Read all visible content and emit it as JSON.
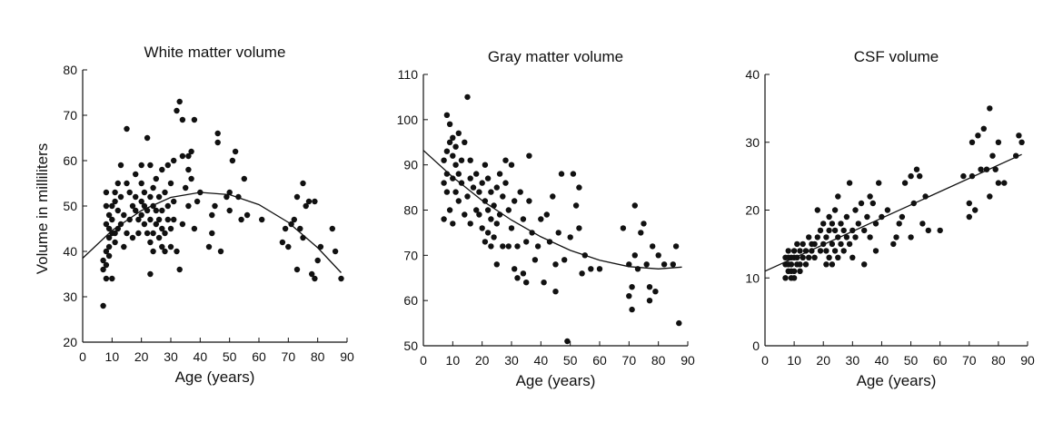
{
  "figure": {
    "ylabel": "Volume in milliliters",
    "xlabel": "Age (years)"
  },
  "chart_data": [
    {
      "type": "scatter",
      "title": "White matter volume",
      "xlabel": "Age (years)",
      "ylabel": "Volume in milliliters",
      "xlim": [
        0,
        90
      ],
      "ylim": [
        20,
        80
      ],
      "xticks": [
        0,
        10,
        20,
        30,
        40,
        50,
        60,
        70,
        80,
        90
      ],
      "yticks": [
        20,
        30,
        40,
        50,
        60,
        70,
        80
      ],
      "grid": false,
      "fit": {
        "kind": "quadratic",
        "x": [
          0,
          10,
          20,
          30,
          40,
          50,
          60,
          70,
          80,
          88
        ],
        "y": [
          38.5,
          44.6,
          49.0,
          51.9,
          53.0,
          52.5,
          50.3,
          46.4,
          40.8,
          35.3
        ]
      },
      "points": [
        [
          7,
          28
        ],
        [
          7,
          36
        ],
        [
          7,
          38
        ],
        [
          8,
          34
        ],
        [
          8,
          37
        ],
        [
          8,
          40
        ],
        [
          8,
          46
        ],
        [
          8,
          50
        ],
        [
          8,
          53
        ],
        [
          9,
          39
        ],
        [
          9,
          41
        ],
        [
          9,
          43
        ],
        [
          9,
          45
        ],
        [
          9,
          48
        ],
        [
          10,
          34
        ],
        [
          10,
          44
        ],
        [
          10,
          47
        ],
        [
          10,
          50
        ],
        [
          11,
          42
        ],
        [
          11,
          44
        ],
        [
          11,
          51
        ],
        [
          11,
          53
        ],
        [
          12,
          45
        ],
        [
          12,
          49
        ],
        [
          12,
          55
        ],
        [
          13,
          46
        ],
        [
          13,
          52
        ],
        [
          13,
          59
        ],
        [
          14,
          41
        ],
        [
          14,
          48
        ],
        [
          15,
          67
        ],
        [
          15,
          44
        ],
        [
          15,
          55
        ],
        [
          16,
          47
        ],
        [
          16,
          53
        ],
        [
          17,
          43
        ],
        [
          17,
          50
        ],
        [
          18,
          49
        ],
        [
          18,
          52
        ],
        [
          18,
          57
        ],
        [
          19,
          44
        ],
        [
          19,
          47
        ],
        [
          20,
          48
        ],
        [
          20,
          51
        ],
        [
          20,
          59
        ],
        [
          20,
          55
        ],
        [
          21,
          50
        ],
        [
          21,
          46
        ],
        [
          21,
          53
        ],
        [
          22,
          65
        ],
        [
          22,
          44
        ],
        [
          22,
          49
        ],
        [
          23,
          35
        ],
        [
          23,
          42
        ],
        [
          23,
          47
        ],
        [
          23,
          52
        ],
        [
          23,
          59
        ],
        [
          24,
          40
        ],
        [
          24,
          44
        ],
        [
          24,
          50
        ],
        [
          24,
          54
        ],
        [
          25,
          46
        ],
        [
          25,
          49
        ],
        [
          25,
          56
        ],
        [
          26,
          43
        ],
        [
          26,
          47
        ],
        [
          26,
          52
        ],
        [
          27,
          41
        ],
        [
          27,
          45
        ],
        [
          27,
          49
        ],
        [
          27,
          58
        ],
        [
          28,
          40
        ],
        [
          28,
          44
        ],
        [
          28,
          53
        ],
        [
          29,
          47
        ],
        [
          29,
          50
        ],
        [
          29,
          59
        ],
        [
          30,
          41
        ],
        [
          30,
          45
        ],
        [
          30,
          55
        ],
        [
          31,
          47
        ],
        [
          31,
          51
        ],
        [
          31,
          60
        ],
        [
          32,
          71
        ],
        [
          32,
          40
        ],
        [
          33,
          36
        ],
        [
          33,
          73
        ],
        [
          34,
          46
        ],
        [
          34,
          61
        ],
        [
          34,
          69
        ],
        [
          35,
          54
        ],
        [
          36,
          50
        ],
        [
          36,
          58
        ],
        [
          36,
          61
        ],
        [
          37,
          56
        ],
        [
          37,
          62
        ],
        [
          38,
          45
        ],
        [
          38,
          69
        ],
        [
          39,
          51
        ],
        [
          40,
          53
        ],
        [
          43,
          41
        ],
        [
          44,
          44
        ],
        [
          44,
          48
        ],
        [
          45,
          50
        ],
        [
          46,
          64
        ],
        [
          46,
          66
        ],
        [
          47,
          40
        ],
        [
          49,
          52
        ],
        [
          50,
          49
        ],
        [
          50,
          53
        ],
        [
          51,
          60
        ],
        [
          52,
          62
        ],
        [
          53,
          52
        ],
        [
          54,
          47
        ],
        [
          55,
          56
        ],
        [
          56,
          48
        ],
        [
          61,
          47
        ],
        [
          68,
          42
        ],
        [
          69,
          45
        ],
        [
          70,
          41
        ],
        [
          71,
          46
        ],
        [
          72,
          47
        ],
        [
          73,
          52
        ],
        [
          73,
          36
        ],
        [
          74,
          45
        ],
        [
          75,
          43
        ],
        [
          75,
          55
        ],
        [
          76,
          50
        ],
        [
          77,
          51
        ],
        [
          78,
          35
        ],
        [
          79,
          34
        ],
        [
          79,
          51
        ],
        [
          80,
          38
        ],
        [
          81,
          41
        ],
        [
          85,
          45
        ],
        [
          86,
          40
        ],
        [
          88,
          34
        ]
      ]
    },
    {
      "type": "scatter",
      "title": "Gray matter volume",
      "xlabel": "Age (years)",
      "ylabel": "",
      "xlim": [
        0,
        90
      ],
      "ylim": [
        50,
        110
      ],
      "xticks": [
        0,
        10,
        20,
        30,
        40,
        50,
        60,
        70,
        80,
        90
      ],
      "yticks": [
        50,
        60,
        70,
        80,
        90,
        100,
        110
      ],
      "grid": false,
      "fit": {
        "kind": "quadratic",
        "x": [
          0,
          10,
          20,
          30,
          40,
          50,
          60,
          70,
          80,
          88
        ],
        "y": [
          93.2,
          87.3,
          82.1,
          77.8,
          74.1,
          71.1,
          68.9,
          67.5,
          67.0,
          67.4
        ]
      },
      "points": [
        [
          7,
          78
        ],
        [
          7,
          86
        ],
        [
          7,
          91
        ],
        [
          8,
          101
        ],
        [
          8,
          84
        ],
        [
          8,
          88
        ],
        [
          8,
          93
        ],
        [
          9,
          80
        ],
        [
          9,
          95
        ],
        [
          9,
          99
        ],
        [
          10,
          77
        ],
        [
          10,
          87
        ],
        [
          10,
          92
        ],
        [
          10,
          96
        ],
        [
          11,
          84
        ],
        [
          11,
          90
        ],
        [
          11,
          94
        ],
        [
          12,
          82
        ],
        [
          12,
          88
        ],
        [
          12,
          97
        ],
        [
          13,
          86
        ],
        [
          13,
          91
        ],
        [
          14,
          79
        ],
        [
          14,
          95
        ],
        [
          15,
          105
        ],
        [
          15,
          83
        ],
        [
          16,
          77
        ],
        [
          16,
          87
        ],
        [
          16,
          91
        ],
        [
          17,
          85
        ],
        [
          18,
          80
        ],
        [
          18,
          88
        ],
        [
          19,
          79
        ],
        [
          19,
          84
        ],
        [
          20,
          76
        ],
        [
          20,
          86
        ],
        [
          21,
          73
        ],
        [
          21,
          82
        ],
        [
          21,
          90
        ],
        [
          22,
          75
        ],
        [
          22,
          80
        ],
        [
          22,
          87
        ],
        [
          23,
          72
        ],
        [
          23,
          78
        ],
        [
          23,
          84
        ],
        [
          24,
          74
        ],
        [
          24,
          81
        ],
        [
          25,
          68
        ],
        [
          25,
          77
        ],
        [
          25,
          85
        ],
        [
          26,
          79
        ],
        [
          26,
          88
        ],
        [
          27,
          72
        ],
        [
          27,
          83
        ],
        [
          28,
          91
        ],
        [
          28,
          86
        ],
        [
          29,
          72
        ],
        [
          29,
          80
        ],
        [
          30,
          90
        ],
        [
          30,
          76
        ],
        [
          31,
          67
        ],
        [
          31,
          82
        ],
        [
          32,
          65
        ],
        [
          32,
          72
        ],
        [
          33,
          84
        ],
        [
          34,
          78
        ],
        [
          34,
          66
        ],
        [
          35,
          64
        ],
        [
          35,
          73
        ],
        [
          36,
          92
        ],
        [
          36,
          82
        ],
        [
          37,
          75
        ],
        [
          38,
          69
        ],
        [
          39,
          72
        ],
        [
          40,
          78
        ],
        [
          41,
          64
        ],
        [
          42,
          79
        ],
        [
          43,
          73
        ],
        [
          44,
          83
        ],
        [
          45,
          62
        ],
        [
          45,
          68
        ],
        [
          46,
          75
        ],
        [
          47,
          88
        ],
        [
          48,
          69
        ],
        [
          49,
          51
        ],
        [
          50,
          74
        ],
        [
          51,
          88
        ],
        [
          52,
          81
        ],
        [
          53,
          76
        ],
        [
          53,
          85
        ],
        [
          54,
          66
        ],
        [
          55,
          70
        ],
        [
          57,
          67
        ],
        [
          60,
          67
        ],
        [
          68,
          76
        ],
        [
          70,
          61
        ],
        [
          70,
          68
        ],
        [
          71,
          58
        ],
        [
          71,
          63
        ],
        [
          72,
          81
        ],
        [
          72,
          70
        ],
        [
          73,
          67
        ],
        [
          74,
          75
        ],
        [
          75,
          77
        ],
        [
          76,
          68
        ],
        [
          77,
          63
        ],
        [
          77,
          60
        ],
        [
          78,
          72
        ],
        [
          79,
          62
        ],
        [
          80,
          70
        ],
        [
          82,
          68
        ],
        [
          85,
          68
        ],
        [
          86,
          72
        ],
        [
          87,
          55
        ]
      ]
    },
    {
      "type": "scatter",
      "title": "CSF volume",
      "xlabel": "Age (years)",
      "ylabel": "",
      "xlim": [
        0,
        90
      ],
      "ylim": [
        0,
        40
      ],
      "xticks": [
        0,
        10,
        20,
        30,
        40,
        50,
        60,
        70,
        80,
        90
      ],
      "yticks": [
        0,
        10,
        20,
        30,
        40
      ],
      "grid": false,
      "fit": {
        "kind": "linear",
        "x": [
          0,
          88
        ],
        "y": [
          11.0,
          28.2
        ]
      },
      "points": [
        [
          7,
          10
        ],
        [
          7,
          12
        ],
        [
          7,
          13
        ],
        [
          8,
          11
        ],
        [
          8,
          12
        ],
        [
          8,
          13
        ],
        [
          8,
          14
        ],
        [
          9,
          10
        ],
        [
          9,
          11
        ],
        [
          9,
          12
        ],
        [
          9,
          13
        ],
        [
          10,
          10
        ],
        [
          10,
          11
        ],
        [
          10,
          13
        ],
        [
          10,
          14
        ],
        [
          11,
          12
        ],
        [
          11,
          13
        ],
        [
          11,
          15
        ],
        [
          12,
          11
        ],
        [
          12,
          12
        ],
        [
          12,
          14
        ],
        [
          13,
          13
        ],
        [
          13,
          15
        ],
        [
          14,
          12
        ],
        [
          14,
          14
        ],
        [
          15,
          13
        ],
        [
          15,
          16
        ],
        [
          16,
          14
        ],
        [
          16,
          15
        ],
        [
          17,
          13
        ],
        [
          17,
          15
        ],
        [
          18,
          16
        ],
        [
          18,
          20
        ],
        [
          19,
          14
        ],
        [
          19,
          17
        ],
        [
          20,
          15
        ],
        [
          20,
          18
        ],
        [
          21,
          12
        ],
        [
          21,
          14
        ],
        [
          21,
          16
        ],
        [
          22,
          13
        ],
        [
          22,
          17
        ],
        [
          22,
          19
        ],
        [
          23,
          12
        ],
        [
          23,
          15
        ],
        [
          23,
          18
        ],
        [
          24,
          14
        ],
        [
          24,
          17
        ],
        [
          24,
          20
        ],
        [
          25,
          13
        ],
        [
          25,
          16
        ],
        [
          25,
          22
        ],
        [
          26,
          15
        ],
        [
          26,
          18
        ],
        [
          27,
          14
        ],
        [
          27,
          17
        ],
        [
          28,
          16
        ],
        [
          28,
          19
        ],
        [
          29,
          15
        ],
        [
          29,
          24
        ],
        [
          30,
          13
        ],
        [
          30,
          17
        ],
        [
          31,
          16
        ],
        [
          31,
          20
        ],
        [
          32,
          18
        ],
        [
          33,
          21
        ],
        [
          34,
          12
        ],
        [
          34,
          17
        ],
        [
          35,
          19
        ],
        [
          36,
          16
        ],
        [
          36,
          22
        ],
        [
          37,
          21
        ],
        [
          38,
          14
        ],
        [
          38,
          18
        ],
        [
          39,
          24
        ],
        [
          40,
          19
        ],
        [
          42,
          20
        ],
        [
          44,
          15
        ],
        [
          45,
          16
        ],
        [
          46,
          18
        ],
        [
          47,
          19
        ],
        [
          48,
          24
        ],
        [
          50,
          16
        ],
        [
          50,
          25
        ],
        [
          51,
          21
        ],
        [
          52,
          26
        ],
        [
          53,
          25
        ],
        [
          54,
          18
        ],
        [
          55,
          22
        ],
        [
          56,
          17
        ],
        [
          60,
          17
        ],
        [
          68,
          25
        ],
        [
          70,
          21
        ],
        [
          70,
          19
        ],
        [
          71,
          25
        ],
        [
          71,
          30
        ],
        [
          72,
          20
        ],
        [
          73,
          31
        ],
        [
          74,
          26
        ],
        [
          75,
          32
        ],
        [
          76,
          26
        ],
        [
          77,
          35
        ],
        [
          77,
          22
        ],
        [
          78,
          28
        ],
        [
          79,
          26
        ],
        [
          80,
          30
        ],
        [
          80,
          24
        ],
        [
          82,
          24
        ],
        [
          86,
          28
        ],
        [
          87,
          31
        ],
        [
          88,
          30
        ]
      ]
    }
  ]
}
